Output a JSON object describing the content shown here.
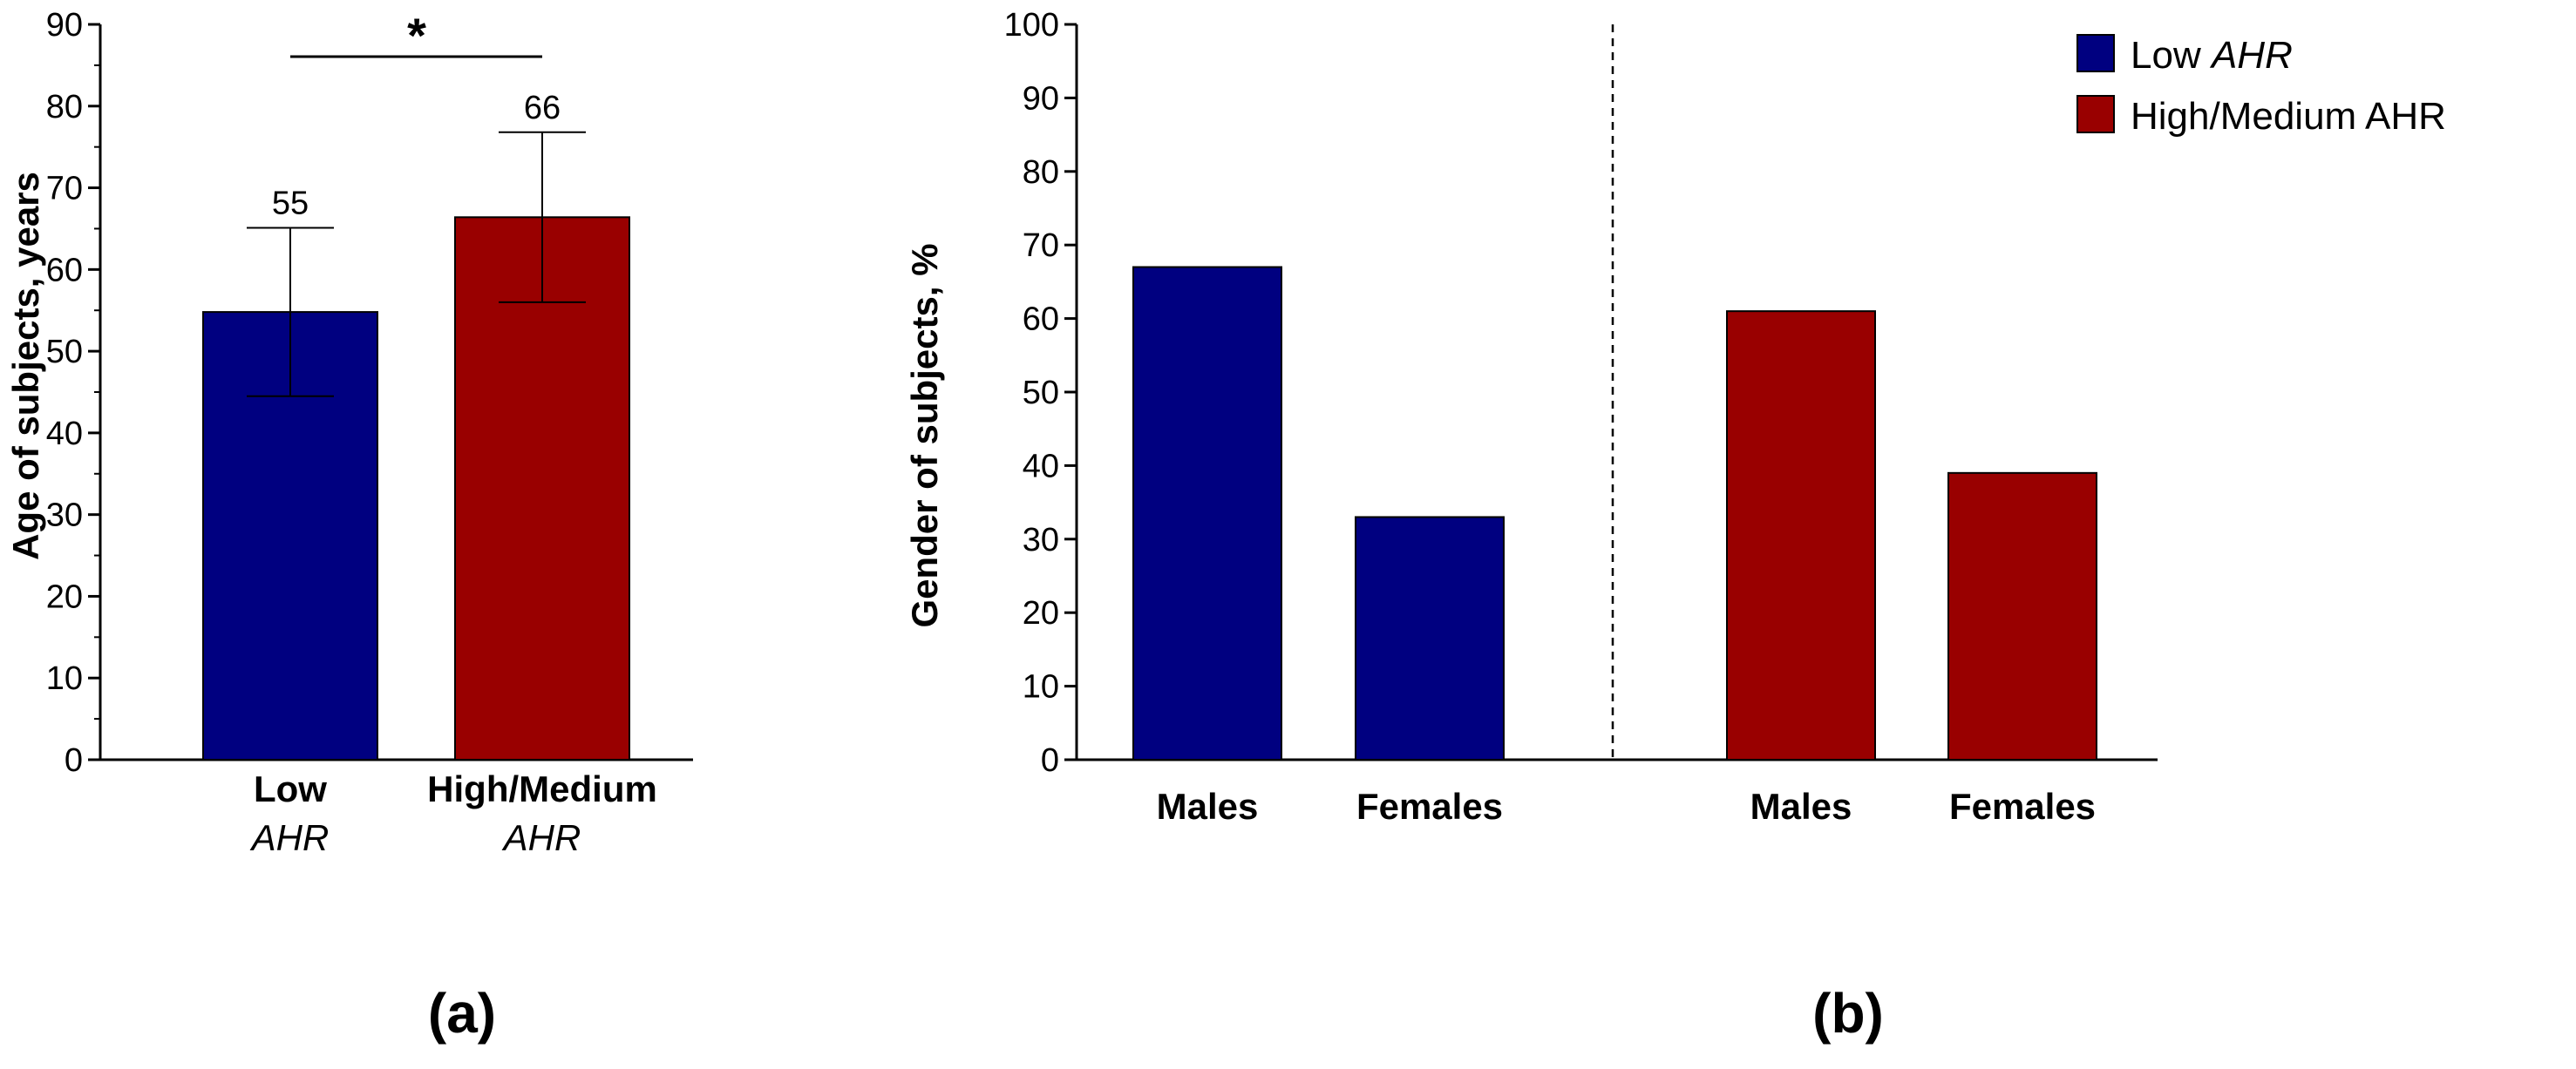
{
  "chart_data": [
    {
      "type": "bar",
      "panel_label": "(a)",
      "categories": [
        {
          "line1": "Low",
          "line2": "AHR"
        },
        {
          "line1": "High/Medium",
          "line2": "AHR"
        }
      ],
      "values": [
        54.8,
        66.4
      ],
      "error": [
        10.3,
        10.4
      ],
      "data_labels": [
        "55",
        "66"
      ],
      "colors": [
        "#000080",
        "#990000"
      ],
      "ylabel": "Age of subjects, years",
      "ylim": [
        0,
        90
      ],
      "yticks": [
        "0",
        "10",
        "20",
        "30",
        "40",
        "50",
        "60",
        "70",
        "80",
        "90"
      ],
      "significance": "*"
    },
    {
      "type": "bar",
      "panel_label": "(b)",
      "groups": [
        {
          "categories": [
            "Males",
            "Females"
          ],
          "values": [
            67,
            33
          ],
          "color": "#000080"
        },
        {
          "categories": [
            "Males",
            "Females"
          ],
          "values": [
            61,
            39
          ],
          "color": "#990000"
        }
      ],
      "ylabel": "Gender of subjects, %",
      "ylim": [
        0,
        100
      ],
      "yticks": [
        "0",
        "10",
        "20",
        "30",
        "40",
        "50",
        "60",
        "70",
        "80",
        "90",
        "100"
      ],
      "legend": [
        {
          "pre": "Low ",
          "it": "AHR",
          "color": "#000080"
        },
        {
          "pre": "High/Medium AHR",
          "it": "",
          "color": "#990000"
        }
      ],
      "legend_position": "top-right"
    }
  ]
}
